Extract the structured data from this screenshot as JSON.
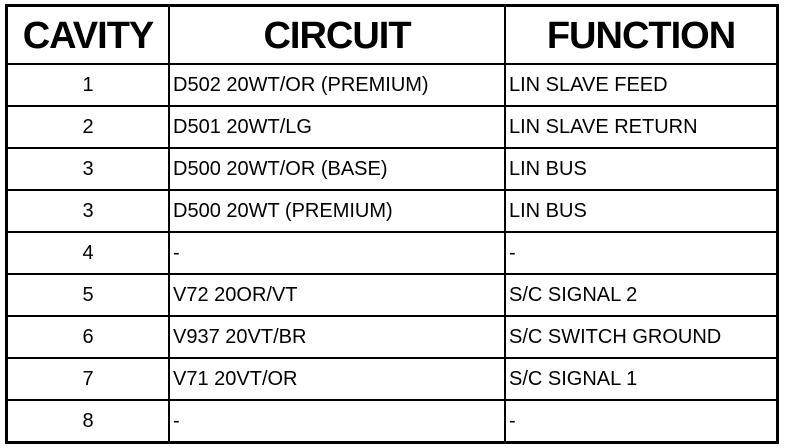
{
  "headers": {
    "cavity": "CAVITY",
    "circuit": "CIRCUIT",
    "function": "FUNCTION"
  },
  "rows": [
    {
      "cavity": "1",
      "circuit": "D502 20WT/OR (PREMIUM)",
      "function": "LIN SLAVE FEED"
    },
    {
      "cavity": "2",
      "circuit": "D501 20WT/LG",
      "function": "LIN SLAVE RETURN"
    },
    {
      "cavity": "3",
      "circuit": "D500 20WT/OR (BASE)",
      "function": "LIN BUS"
    },
    {
      "cavity": "3",
      "circuit": "D500 20WT (PREMIUM)",
      "function": "LIN BUS"
    },
    {
      "cavity": "4",
      "circuit": "-",
      "function": "-"
    },
    {
      "cavity": "5",
      "circuit": "V72 20OR/VT",
      "function": "S/C SIGNAL 2"
    },
    {
      "cavity": "6",
      "circuit": "V937 20VT/BR",
      "function": "S/C SWITCH GROUND"
    },
    {
      "cavity": "7",
      "circuit": "V71 20VT/OR",
      "function": "S/C SIGNAL 1"
    },
    {
      "cavity": "8",
      "circuit": "-",
      "function": "-"
    }
  ]
}
